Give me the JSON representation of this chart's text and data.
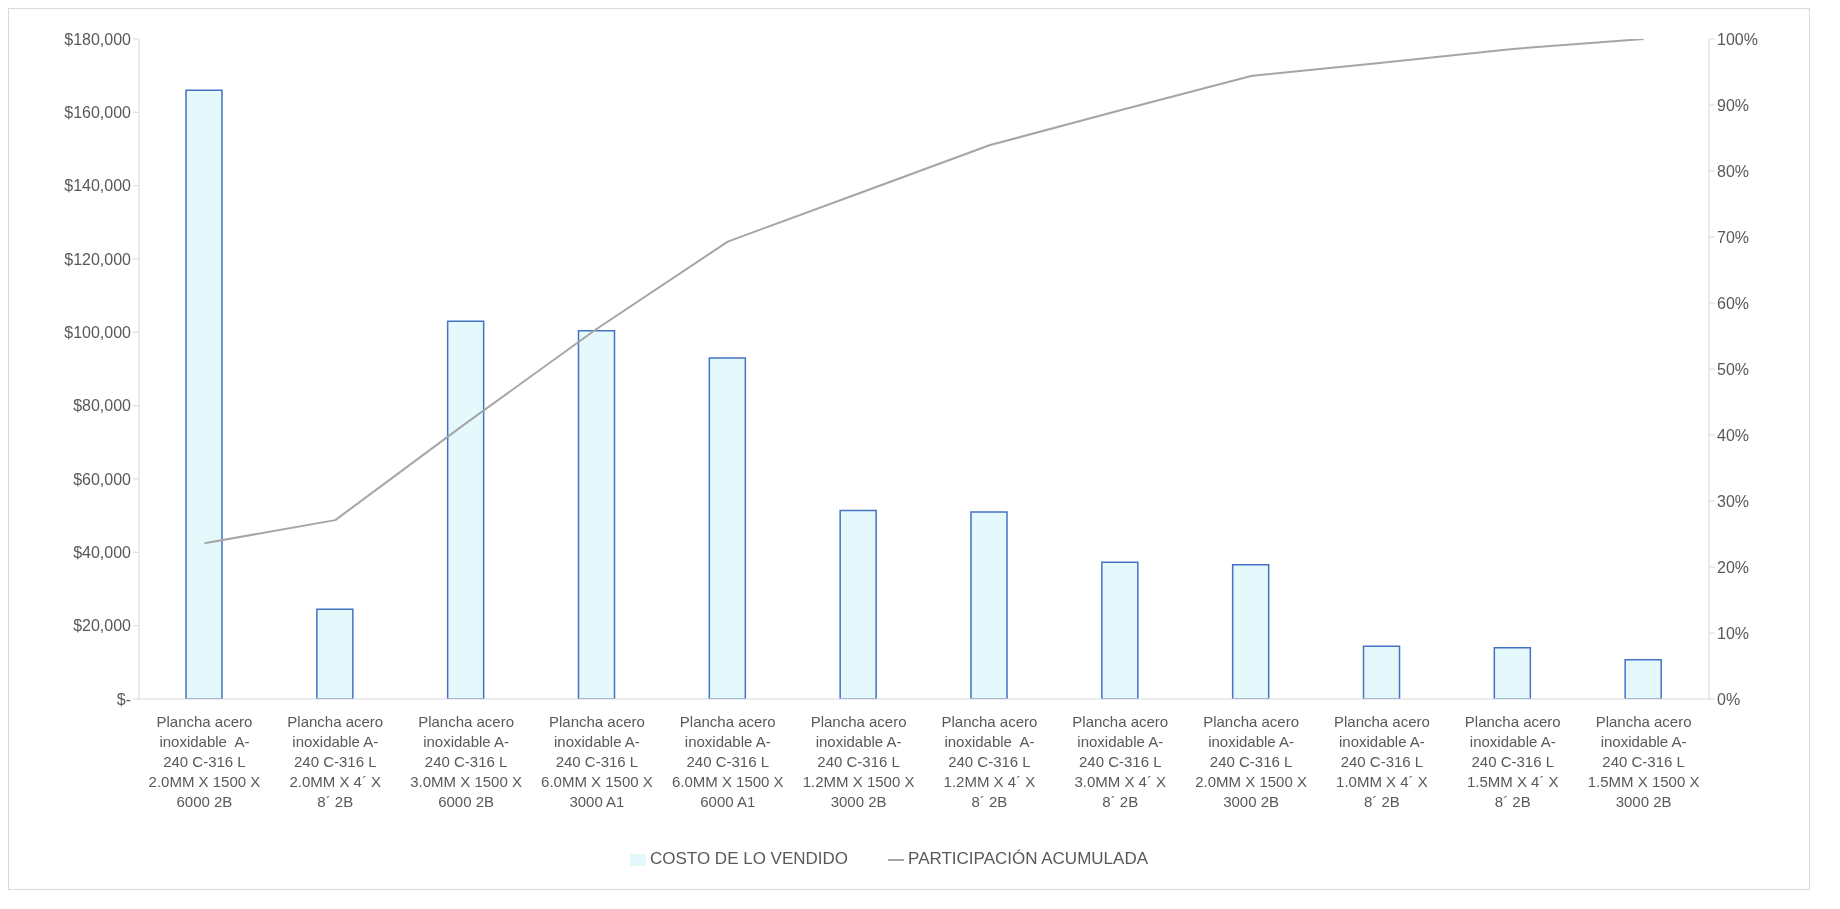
{
  "chart_data": {
    "type": "bar",
    "categories": [
      "Plancha acero inoxidable  A-240 C-316 L 2.0MM X 1500 X 6000 2B",
      "Plancha acero inoxidable A-240 C-316 L 2.0MM X 4´ X 8´ 2B",
      "Plancha acero inoxidable A-240 C-316 L 3.0MM X 1500 X 6000 2B",
      "Plancha acero inoxidable A-240 C-316 L 6.0MM X 1500 X 3000 A1",
      "Plancha acero inoxidable A-240 C-316 L 6.0MM X 1500 X 6000 A1",
      "Plancha acero inoxidable A-240 C-316 L 1.2MM X 1500 X 3000 2B",
      "Plancha acero inoxidable  A-240 C-316 L 1.2MM X 4´ X 8´ 2B",
      "Plancha acero inoxidable A-240 C-316 L 3.0MM X 4´ X 8´ 2B",
      "Plancha acero inoxidable A-240 C-316 L 2.0MM X 1500 X 3000 2B",
      "Plancha acero inoxidable A-240 C-316 L 1.0MM X 4´ X 8´ 2B",
      "Plancha acero inoxidable A-240 C-316 L 1.5MM X 4´ X 8´ 2B",
      "Plancha acero inoxidable A-240 C-316 L 1.5MM X 1500 X 3000 2B"
    ],
    "series": [
      {
        "name": "COSTO DE LO VENDIDO",
        "color": "#e5f9fc",
        "values": [
          166000,
          24500,
          103000,
          100400,
          93000,
          51400,
          51000,
          37300,
          36600,
          14400,
          14000,
          10700
        ]
      },
      {
        "name": "PARTICIPACIÓN ACUMULADA",
        "type": "line",
        "axis": "y2",
        "color": "#a5a5a5",
        "values": [
          23.6,
          27.1,
          41.8,
          56.1,
          69.3,
          76.6,
          83.9,
          89.2,
          94.4,
          96.4,
          98.5,
          100
        ]
      }
    ],
    "ylim": [
      0,
      180000
    ],
    "yticks": [
      {
        "value": 0,
        "label": "$-"
      },
      {
        "value": 20000,
        "label": "$20,000"
      },
      {
        "value": 40000,
        "label": "$40,000"
      },
      {
        "value": 60000,
        "label": "$60,000"
      },
      {
        "value": 80000,
        "label": "$80,000"
      },
      {
        "value": 100000,
        "label": "$100,000"
      },
      {
        "value": 120000,
        "label": "$120,000"
      },
      {
        "value": 140000,
        "label": "$140,000"
      },
      {
        "value": 160000,
        "label": "$160,000"
      },
      {
        "value": 180000,
        "label": "$180,000"
      }
    ],
    "y2lim": [
      0,
      100
    ],
    "y2ticks": [
      {
        "value": 0,
        "label": "0%"
      },
      {
        "value": 10,
        "label": "10%"
      },
      {
        "value": 20,
        "label": "20%"
      },
      {
        "value": 30,
        "label": "30%"
      },
      {
        "value": 40,
        "label": "40%"
      },
      {
        "value": 50,
        "label": "50%"
      },
      {
        "value": 60,
        "label": "60%"
      },
      {
        "value": 70,
        "label": "70%"
      },
      {
        "value": 80,
        "label": "80%"
      },
      {
        "value": 90,
        "label": "90%"
      },
      {
        "value": 100,
        "label": "100%"
      }
    ],
    "grid": false,
    "legend": "bottom",
    "marker": "none"
  }
}
